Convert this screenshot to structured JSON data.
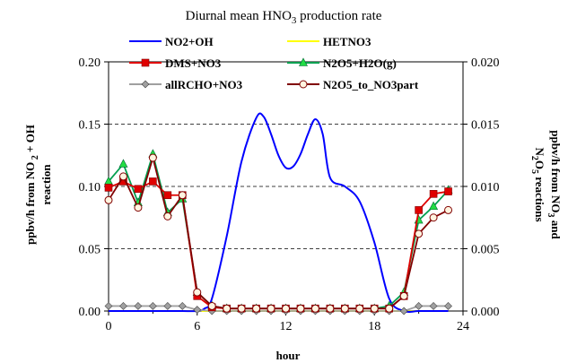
{
  "chart_data": {
    "type": "line",
    "title": "Diurnal mean HNO3 production rate",
    "xlabel": "hour",
    "ylabel_left": "ppbv/h from NO2 + OH reaction",
    "ylabel_right": "ppbv/h from NO3 and N2O5 reactions",
    "xlim": [
      0,
      24
    ],
    "ylim_left": [
      0,
      0.2
    ],
    "ylim_right": [
      0,
      0.02
    ],
    "x_ticks": [
      "0",
      "6",
      "12",
      "18",
      "24"
    ],
    "y_left_ticks": [
      "0.00",
      "0.05",
      "0.10",
      "0.15",
      "0.20"
    ],
    "y_right_ticks": [
      "0.000",
      "0.005",
      "0.010",
      "0.015",
      "0.020"
    ],
    "grid": "dashed horizontal",
    "legend_position": "top",
    "series": [
      {
        "name": "NO2+OH",
        "axis": "left",
        "color": "#0000ff",
        "marker": "none",
        "x": [
          0,
          1,
          2,
          3,
          4,
          5,
          6,
          6.5,
          7,
          8,
          9,
          10,
          10.5,
          11,
          11.5,
          12,
          12.5,
          13,
          13.5,
          14,
          14.5,
          15,
          16,
          17,
          18,
          19,
          20,
          21,
          22,
          23
        ],
        "y": [
          0,
          0,
          0,
          0,
          0,
          0,
          0,
          0.002,
          0.01,
          0.06,
          0.12,
          0.155,
          0.156,
          0.142,
          0.125,
          0.115,
          0.116,
          0.126,
          0.142,
          0.154,
          0.142,
          0.107,
          0.1,
          0.088,
          0.055,
          0.01,
          0,
          0,
          0,
          0
        ]
      },
      {
        "name": "HETNO3",
        "axis": "right",
        "color": "#ffff00",
        "marker": "none",
        "x": [
          0,
          1,
          2,
          3,
          4,
          5,
          6,
          7,
          8,
          9,
          10,
          11,
          12,
          13,
          14,
          15,
          16,
          17,
          18,
          19,
          20,
          21,
          22,
          23
        ],
        "y": [
          0,
          0,
          0,
          0,
          0,
          0,
          0,
          0,
          0,
          0,
          0,
          0,
          0,
          0,
          0,
          0,
          0,
          0,
          0,
          0,
          0,
          0,
          0,
          0
        ]
      },
      {
        "name": "DMS+NO3",
        "axis": "right",
        "color": "#e00000",
        "marker": "square",
        "x": [
          0,
          1,
          2,
          3,
          4,
          5,
          6,
          7,
          8,
          9,
          10,
          11,
          12,
          13,
          14,
          15,
          16,
          17,
          18,
          19,
          20,
          21,
          22,
          23
        ],
        "y": [
          0.0099,
          0.0104,
          0.0098,
          0.0104,
          0.0093,
          0.0093,
          0.0012,
          0.0003,
          0.0002,
          0.0002,
          0.0002,
          0.0002,
          0.0002,
          0.0002,
          0.0002,
          0.0002,
          0.0002,
          0.0002,
          0.0002,
          0.0002,
          0.0012,
          0.0081,
          0.0094,
          0.0096
        ]
      },
      {
        "name": "N2O5+H2O(g)",
        "axis": "right",
        "color": "#00a050",
        "marker": "triangle",
        "x": [
          0,
          1,
          2,
          3,
          4,
          5,
          6,
          7,
          8,
          9,
          10,
          11,
          12,
          13,
          14,
          15,
          16,
          17,
          18,
          19,
          20,
          21,
          22,
          23
        ],
        "y": [
          0.0104,
          0.0118,
          0.0087,
          0.0126,
          0.0079,
          0.009,
          0.0015,
          0.0004,
          0.0002,
          0.0002,
          0.0002,
          0.0002,
          0.0002,
          0.0002,
          0.0002,
          0.0002,
          0.0002,
          0.0002,
          0.0002,
          0.0004,
          0.0015,
          0.0073,
          0.0084,
          0.0097
        ]
      },
      {
        "name": "allRCHO+NO3",
        "axis": "right",
        "color": "#a0a0a0",
        "marker": "diamond",
        "x": [
          0,
          1,
          2,
          3,
          4,
          5,
          6,
          7,
          8,
          9,
          10,
          11,
          12,
          13,
          14,
          15,
          16,
          17,
          18,
          19,
          20,
          21,
          22,
          23
        ],
        "y": [
          0.0004,
          0.0004,
          0.0004,
          0.0004,
          0.0004,
          0.0004,
          0.0001,
          0,
          0,
          0,
          0,
          0,
          0,
          0,
          0,
          0,
          0,
          0,
          0,
          0,
          0,
          0.0004,
          0.0004,
          0.0004
        ]
      },
      {
        "name": "N2O5_to_NO3part",
        "axis": "right",
        "color": "#800000",
        "marker": "circle",
        "x": [
          0,
          1,
          2,
          3,
          4,
          5,
          6,
          7,
          8,
          9,
          10,
          11,
          12,
          13,
          14,
          15,
          16,
          17,
          18,
          19,
          20,
          21,
          22,
          23
        ],
        "y": [
          0.0089,
          0.0108,
          0.0083,
          0.0123,
          0.0076,
          0.0093,
          0.0015,
          0.0004,
          0.0002,
          0.0002,
          0.0002,
          0.0002,
          0.0002,
          0.0002,
          0.0002,
          0.0002,
          0.0002,
          0.0002,
          0.0002,
          0.0002,
          0.0012,
          0.0062,
          0.0075,
          0.0081
        ]
      }
    ]
  }
}
